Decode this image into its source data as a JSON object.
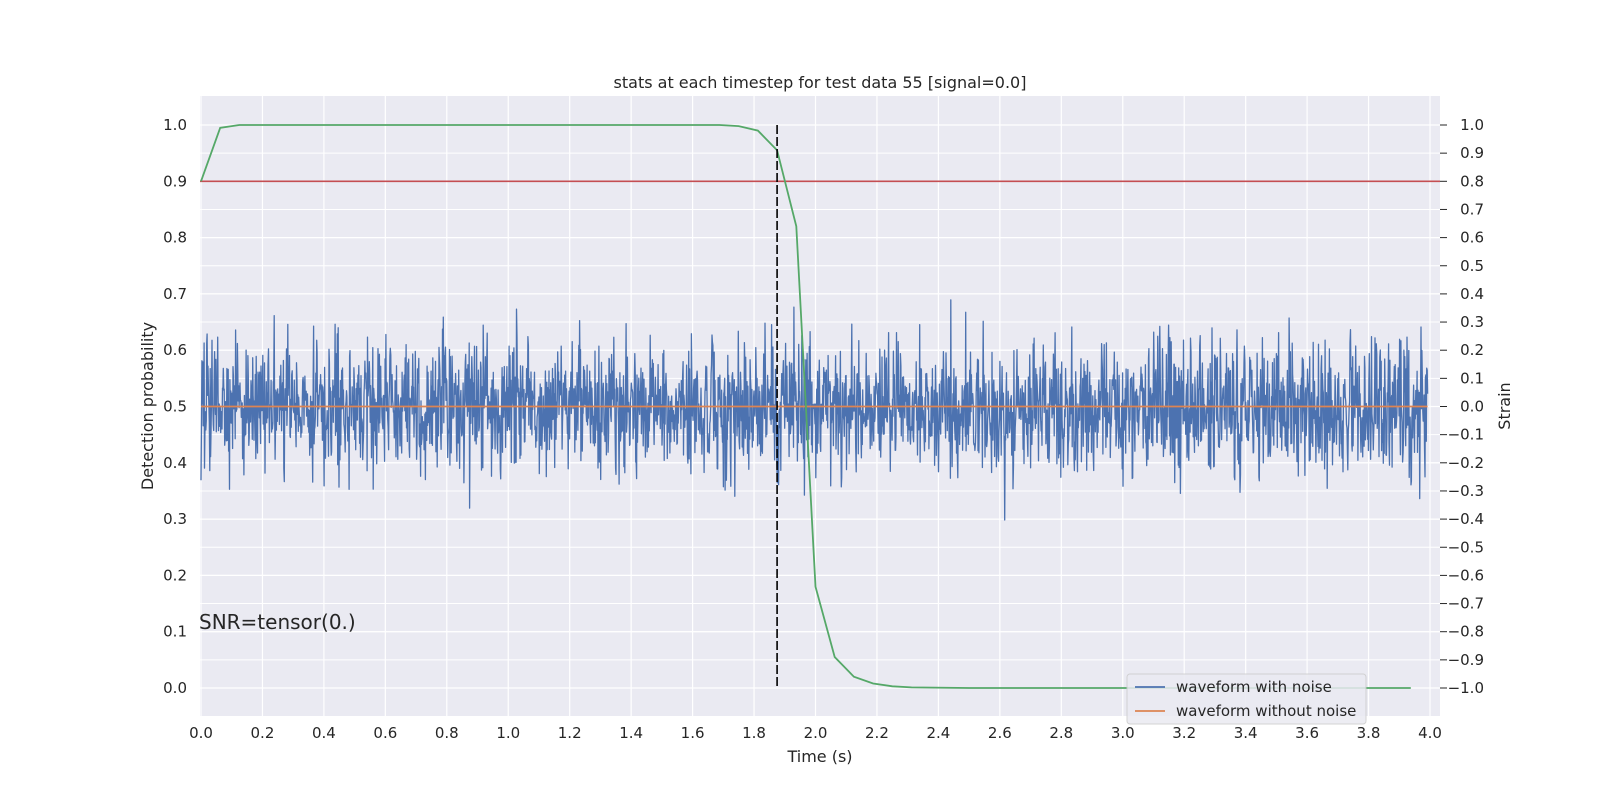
{
  "chart_data": {
    "type": "line",
    "title": "stats at each timestep for test data 55 [signal=0.0]",
    "xlabel": "Time (s)",
    "ylabel": "Detection probability",
    "y2label": "Strain",
    "xlim": [
      0.0,
      4.0
    ],
    "ylim": [
      0.0,
      1.0
    ],
    "y2lim": [
      -1.0,
      1.0
    ],
    "x_ticks": [
      "0.0",
      "0.2",
      "0.4",
      "0.6",
      "0.8",
      "1.0",
      "1.2",
      "1.4",
      "1.6",
      "1.8",
      "2.0",
      "2.2",
      "2.4",
      "2.6",
      "2.8",
      "3.0",
      "3.2",
      "3.4",
      "3.6",
      "3.8",
      "4.0"
    ],
    "y_ticks": [
      "0.0",
      "0.1",
      "0.2",
      "0.3",
      "0.4",
      "0.5",
      "0.6",
      "0.7",
      "0.8",
      "0.9",
      "1.0"
    ],
    "y2_ticks": [
      "−1.0",
      "−0.9",
      "−0.8",
      "−0.7",
      "−0.6",
      "−0.5",
      "−0.4",
      "−0.3",
      "−0.2",
      "−0.1",
      "0.0",
      "0.1",
      "0.2",
      "0.3",
      "0.4",
      "0.5",
      "0.6",
      "0.7",
      "0.8",
      "0.9",
      "1.0"
    ],
    "grid": true,
    "legend_position": "bottom-right",
    "annotation": "SNR=tensor(0.)",
    "threshold": {
      "y": 0.9,
      "color": "#c44e52"
    },
    "marker_time": 1.875,
    "detection_probability": {
      "color": "#55a868",
      "x": [
        0.0,
        0.0625,
        0.125,
        0.1875,
        0.25,
        0.5,
        1.0,
        1.5,
        1.6875,
        1.75,
        1.8125,
        1.875,
        1.9375,
        2.0,
        2.0625,
        2.125,
        2.1875,
        2.25,
        2.3125,
        2.5,
        3.0,
        3.5,
        3.9375
      ],
      "y": [
        0.9,
        0.995,
        1.0,
        1.0,
        1.0,
        1.0,
        1.0,
        1.0,
        1.0,
        0.998,
        0.99,
        0.955,
        0.82,
        0.18,
        0.055,
        0.02,
        0.008,
        0.003,
        0.001,
        0.0,
        0.0,
        0.0,
        0.0
      ]
    },
    "series": [
      {
        "name": "waveform with noise",
        "color": "#4c72b0",
        "y_range": [
          -1.0,
          1.0
        ]
      },
      {
        "name": "waveform without noise",
        "color": "#dd8452",
        "value": 0.0
      }
    ]
  }
}
